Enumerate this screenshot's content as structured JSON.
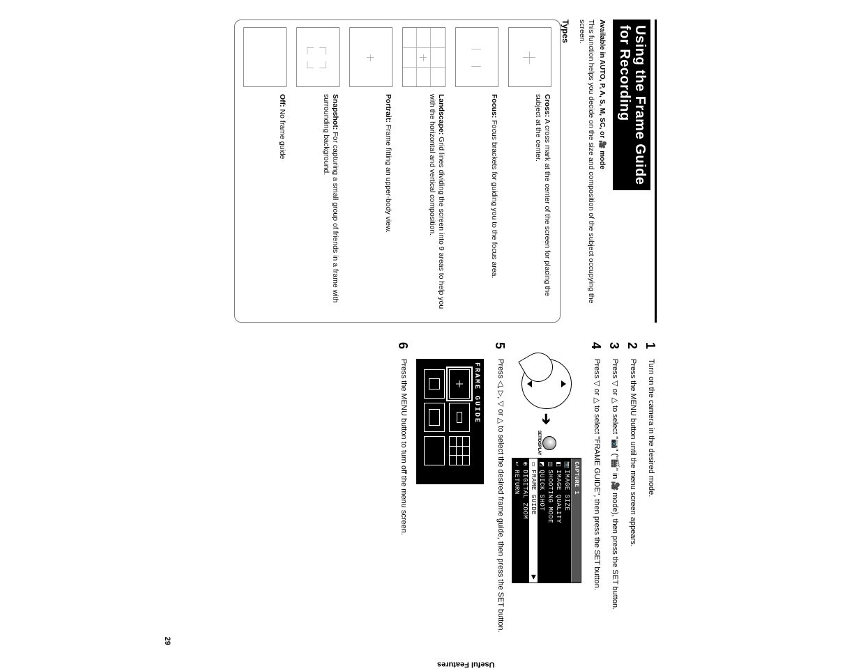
{
  "title_line1": "Using the Frame Guide",
  "title_line2": "for Recording",
  "available": "Available in AUTO, P, A, S, M, SC, or 🎥 mode",
  "intro": "This function helps you decide on the size and composition of the subject occupying the screen.",
  "types_label": "Types",
  "types": [
    {
      "name": "Cross:",
      "desc": "A cross mark at the center of the screen for placing the subject at the center."
    },
    {
      "name": "Focus:",
      "desc": "Focus brackets for guiding you to the focus area."
    },
    {
      "name": "Landscape:",
      "desc": "Grid lines dividing the screen into 9 areas to help you with the horizontal and vertical composition."
    },
    {
      "name": "Portrait:",
      "desc": "Frame fitting an upper-body view."
    },
    {
      "name": "Snapshot:",
      "desc": "For capturing a small group of friends in a frame with surrounding background."
    },
    {
      "name": "Off:",
      "desc": "No frame guide"
    }
  ],
  "steps": {
    "s1": "Turn on the camera in the desired mode.",
    "s2": "Press the MENU button until the menu screen appears.",
    "s3_a": "Press ▽ or △ to select \"",
    "s3_b": "📷\" (\"🎬\" in 🎥 mode), then press the SET button.",
    "s4_a": "Press ▽ or △ to select ",
    "s4_b": "\"FRAME GUIDE\", then press the SET button.",
    "s5": "Press ◁, ▷, ▽ or △ to select the desired frame guide, then press the SET button.",
    "s6": "Press the MENU button to turn off the menu screen."
  },
  "set_label": "SET/DISPLAY",
  "menu": {
    "tab": "CAPTURE 1",
    "items": [
      {
        "icon": "📷",
        "label": "IMAGE SIZE"
      },
      {
        "icon": "◧",
        "label": "IMAGE QUALITY"
      },
      {
        "icon": "◫",
        "label": "SHOOTING MODE"
      },
      {
        "icon": "◩",
        "label": "QUICK SHOT"
      },
      {
        "icon": "▭",
        "label": "FRAME GUIDE",
        "selected": true
      },
      {
        "icon": "⊕",
        "label": "DIGITAL ZOOM"
      },
      {
        "icon": "↩",
        "label": "RETURN"
      }
    ]
  },
  "frame_guide_title": "FRAME GUIDE",
  "side_tab": "Useful Features",
  "page_number": "29",
  "colors": {
    "fg": "#000000",
    "bg": "#ffffff",
    "thumb_border": "#888888",
    "guide_line": "#bbbbbb"
  }
}
